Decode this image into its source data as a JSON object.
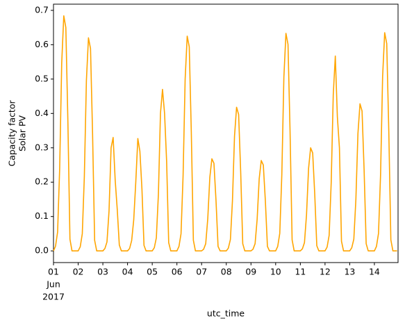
{
  "chart_data": {
    "type": "line",
    "xlabel": "utc_time",
    "ylabel": [
      "Capacity factor",
      "Solar PV"
    ],
    "x": [
      0,
      2,
      4,
      6,
      8,
      10,
      12,
      14,
      16,
      18,
      20,
      22,
      24,
      26,
      28,
      30,
      32,
      34,
      36,
      38,
      40,
      42,
      44,
      46,
      48,
      50,
      52,
      54,
      56,
      58,
      60,
      62,
      64,
      66,
      68,
      70,
      72,
      74,
      76,
      78,
      80,
      82,
      84,
      86,
      88,
      90,
      92,
      94,
      96,
      98,
      100,
      102,
      104,
      106,
      108,
      110,
      112,
      114,
      116,
      118,
      120,
      122,
      124,
      126,
      128,
      130,
      132,
      134,
      136,
      138,
      140,
      142,
      144,
      146,
      148,
      150,
      152,
      154,
      156,
      158,
      160,
      162,
      164,
      166,
      168,
      170,
      172,
      174,
      176,
      178,
      180,
      182,
      184,
      186,
      188,
      190,
      192,
      194,
      196,
      198,
      200,
      202,
      204,
      206,
      208,
      210,
      212,
      214,
      216,
      218,
      220,
      222,
      224,
      226,
      228,
      230,
      232,
      234,
      236,
      238,
      240,
      242,
      244,
      246,
      248,
      250,
      252,
      254,
      256,
      258,
      260,
      262,
      264,
      266,
      268,
      270,
      272,
      274,
      276,
      278,
      280,
      282,
      284,
      286,
      288,
      290,
      292,
      294,
      296,
      298,
      300,
      302,
      304,
      306,
      308,
      310,
      312,
      314,
      316,
      318,
      320,
      322,
      324,
      326,
      328,
      330,
      332,
      334
    ],
    "series": [
      {
        "name": "Solar PV",
        "color": "#ffa500",
        "values": [
          0,
          0.014,
          0.055,
          0.239,
          0.547,
          0.684,
          0.65,
          0.376,
          0.034,
          0,
          0,
          0,
          0,
          0.012,
          0.05,
          0.217,
          0.496,
          0.62,
          0.589,
          0.341,
          0.031,
          0,
          0,
          0,
          0,
          0.007,
          0.026,
          0.116,
          0.3,
          0.33,
          0.205,
          0.12,
          0.017,
          0,
          0,
          0,
          0,
          0.007,
          0.03,
          0.09,
          0.2,
          0.327,
          0.29,
          0.18,
          0.016,
          0,
          0,
          0,
          0,
          0.009,
          0.038,
          0.165,
          0.4,
          0.47,
          0.4,
          0.26,
          0.024,
          0,
          0,
          0,
          0,
          0.013,
          0.05,
          0.219,
          0.5,
          0.625,
          0.594,
          0.344,
          0.031,
          0,
          0,
          0,
          0,
          0.005,
          0.021,
          0.094,
          0.214,
          0.268,
          0.255,
          0.147,
          0.013,
          0,
          0,
          0,
          0,
          0.008,
          0.033,
          0.146,
          0.334,
          0.418,
          0.397,
          0.23,
          0.021,
          0,
          0,
          0,
          0,
          0.005,
          0.021,
          0.092,
          0.21,
          0.263,
          0.25,
          0.145,
          0.013,
          0,
          0,
          0,
          0,
          0.013,
          0.051,
          0.222,
          0.506,
          0.633,
          0.601,
          0.348,
          0.032,
          0,
          0,
          0,
          0,
          0.006,
          0.024,
          0.105,
          0.24,
          0.3,
          0.285,
          0.165,
          0.015,
          0,
          0,
          0,
          0,
          0.011,
          0.045,
          0.198,
          0.454,
          0.567,
          0.39,
          0.3,
          0.028,
          0,
          0,
          0,
          0,
          0.009,
          0.034,
          0.15,
          0.342,
          0.428,
          0.407,
          0.235,
          0.021,
          0,
          0,
          0,
          0,
          0.013,
          0.051,
          0.222,
          0.508,
          0.635,
          0.603,
          0.349,
          0.032,
          0,
          0,
          0
        ]
      }
    ],
    "xlim": [
      0,
      335
    ],
    "xticks": [
      {
        "value": 0,
        "label": "01"
      },
      {
        "value": 24,
        "label": "02"
      },
      {
        "value": 48,
        "label": "03"
      },
      {
        "value": 72,
        "label": "04"
      },
      {
        "value": 96,
        "label": "05"
      },
      {
        "value": 120,
        "label": "06"
      },
      {
        "value": 144,
        "label": "07"
      },
      {
        "value": 168,
        "label": "08"
      },
      {
        "value": 192,
        "label": "09"
      },
      {
        "value": 216,
        "label": "10"
      },
      {
        "value": 240,
        "label": "11"
      },
      {
        "value": 264,
        "label": "12"
      },
      {
        "value": 288,
        "label": "13"
      },
      {
        "value": 312,
        "label": "14"
      }
    ],
    "x_first_tick_sublabels": [
      "Jun",
      "2017"
    ],
    "ylim": [
      -0.034,
      0.718
    ],
    "yticks": [
      {
        "value": 0,
        "label": "0.0"
      },
      0.1,
      0.2,
      0.3,
      0.4,
      0.5,
      0.6,
      0.7
    ],
    "grid": false
  }
}
